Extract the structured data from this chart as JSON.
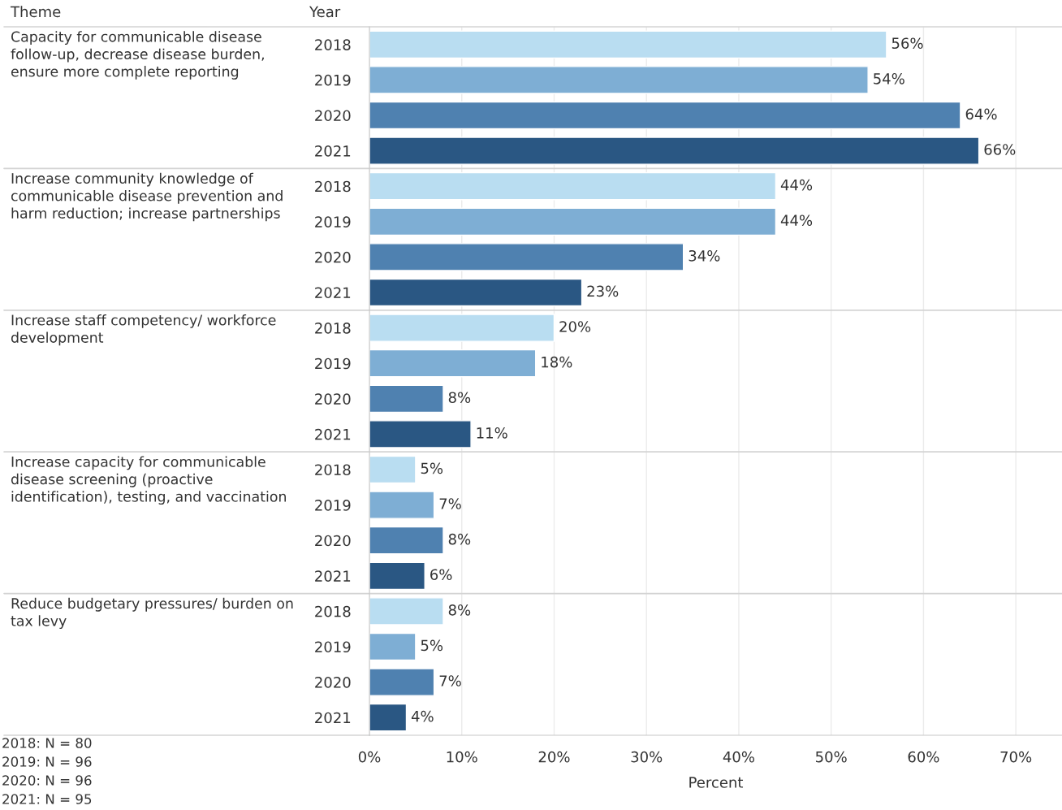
{
  "chart_data": {
    "type": "bar",
    "orientation": "horizontal",
    "ylabel": "Theme",
    "legend_title": "Year",
    "xlabel": "Percent",
    "categories": [
      "Capacity for communicable disease follow-up, decrease disease burden, ensure more complete reporting",
      "Increase community knowledge of communicable disease prevention and harm reduction; increase partnerships",
      "Increase staff competency/ workforce development",
      "Increase capacity for communicable disease screening (proactive identification), testing, and vaccination",
      "Reduce budgetary pressures/ burden on tax levy"
    ],
    "series": [
      {
        "name": "2018",
        "color": "#b9ddf1",
        "values": [
          56,
          44,
          20,
          5,
          8
        ],
        "value_labels": [
          "56%",
          "44%",
          "20%",
          "5%",
          "8%"
        ]
      },
      {
        "name": "2019",
        "color": "#7eaed4",
        "values": [
          54,
          44,
          18,
          7,
          5
        ],
        "value_labels": [
          "54%",
          "44%",
          "18%",
          "7%",
          "5%"
        ]
      },
      {
        "name": "2020",
        "color": "#4f81b0",
        "values": [
          64,
          34,
          8,
          8,
          7
        ],
        "value_labels": [
          "64%",
          "34%",
          "8%",
          "8%",
          "7%"
        ]
      },
      {
        "name": "2021",
        "color": "#2a5783",
        "values": [
          66,
          23,
          11,
          6,
          4
        ],
        "value_labels": [
          "66%",
          "23%",
          "11%",
          "6%",
          "4%"
        ]
      }
    ],
    "xlim": [
      0,
      75
    ],
    "xticks": [
      {
        "value": 0,
        "label": "0%"
      },
      {
        "value": 10,
        "label": "10%"
      },
      {
        "value": 20,
        "label": "20%"
      },
      {
        "value": 30,
        "label": "30%"
      },
      {
        "value": 40,
        "label": "40%"
      },
      {
        "value": 50,
        "label": "50%"
      },
      {
        "value": 60,
        "label": "60%"
      },
      {
        "value": 70,
        "label": "70%"
      }
    ],
    "grid": "x",
    "annotations": [
      "2018: N = 80",
      "2019: N = 96",
      "2020: N = 96",
      "2021: N = 95"
    ]
  }
}
